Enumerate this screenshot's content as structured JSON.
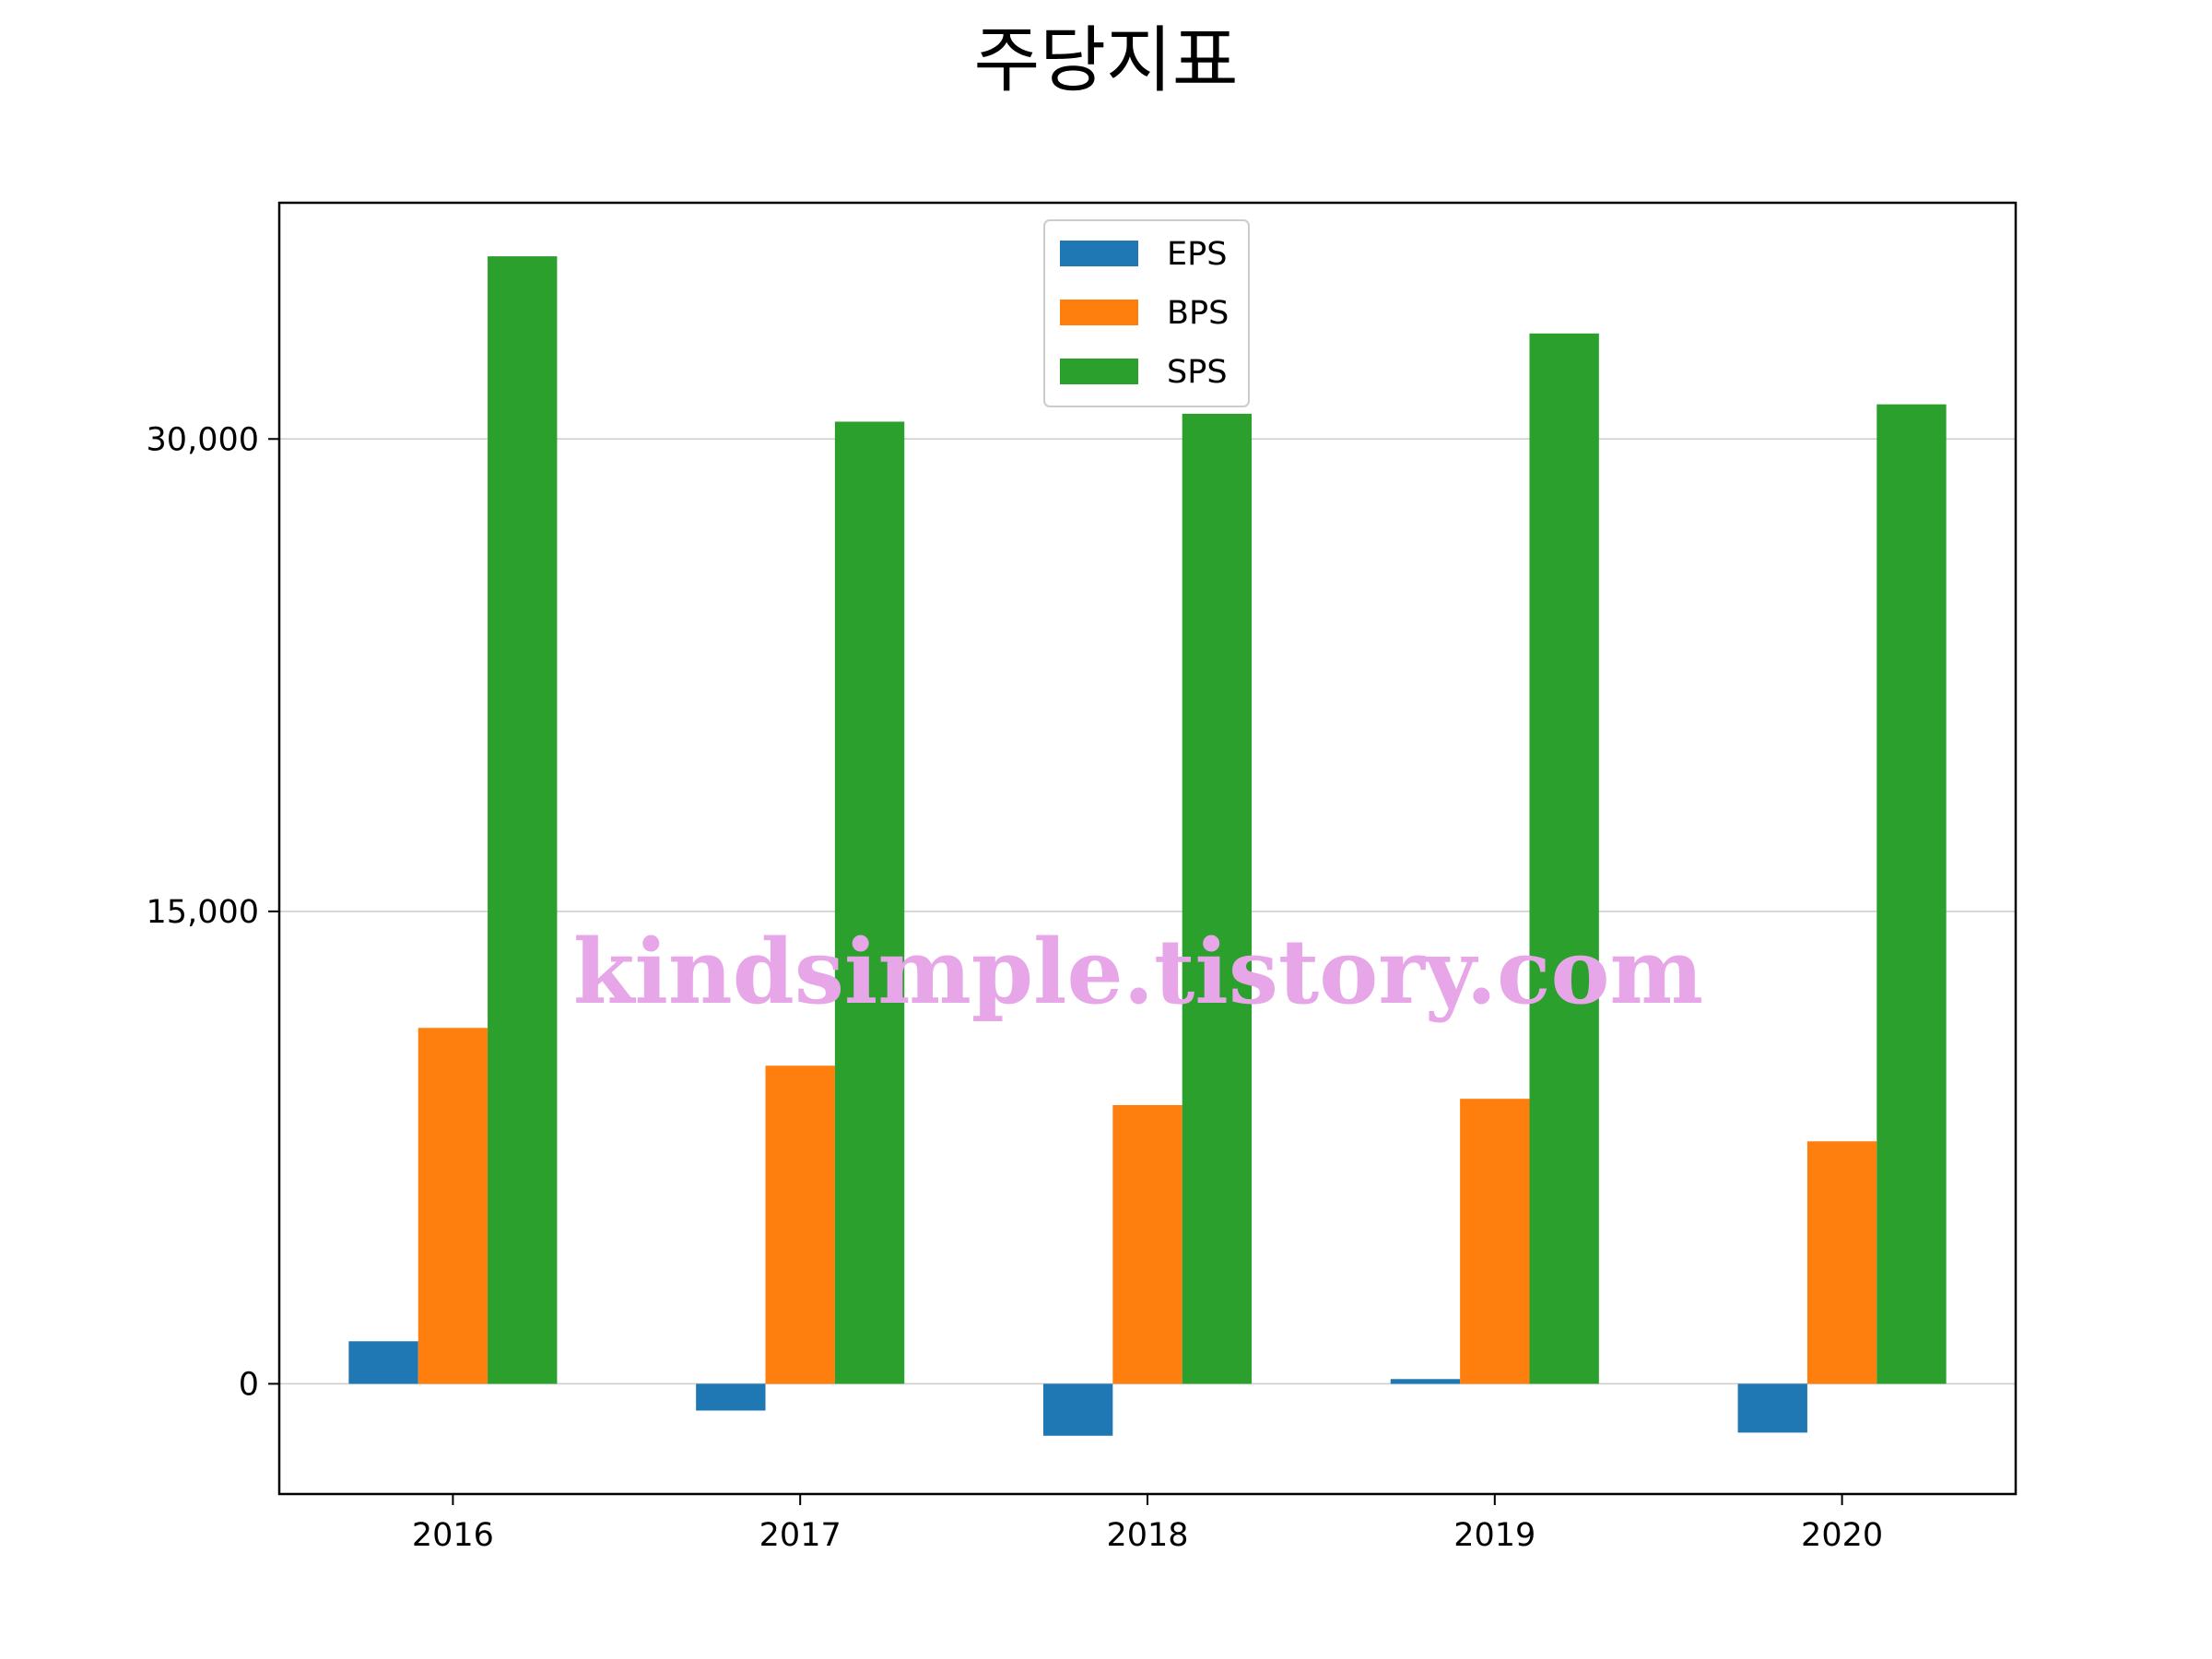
{
  "chart_data": {
    "type": "bar",
    "title": "주당지표",
    "xlabel": "",
    "ylabel": "",
    "categories": [
      "2016",
      "2017",
      "2018",
      "2019",
      "2020"
    ],
    "series": [
      {
        "name": "EPS",
        "color": "#1f77b4",
        "values": [
          1350,
          -850,
          -1650,
          150,
          -1550
        ]
      },
      {
        "name": "BPS",
        "color": "#ff7f0e",
        "values": [
          11300,
          10100,
          8850,
          9050,
          7700
        ]
      },
      {
        "name": "SPS",
        "color": "#2ca02c",
        "values": [
          35800,
          30550,
          30800,
          33350,
          31100
        ]
      }
    ],
    "ylim": [
      -3500,
      37500
    ],
    "yticks": [
      0,
      15000,
      30000
    ],
    "ytick_labels": [
      "0",
      "15,000",
      "30,000"
    ],
    "grid": {
      "y": true,
      "x": false,
      "color": "#cccccc"
    },
    "legend": {
      "position": "top-center",
      "entries": [
        "EPS",
        "BPS",
        "SPS"
      ]
    },
    "watermark": "kindsimple.tistory.com"
  }
}
